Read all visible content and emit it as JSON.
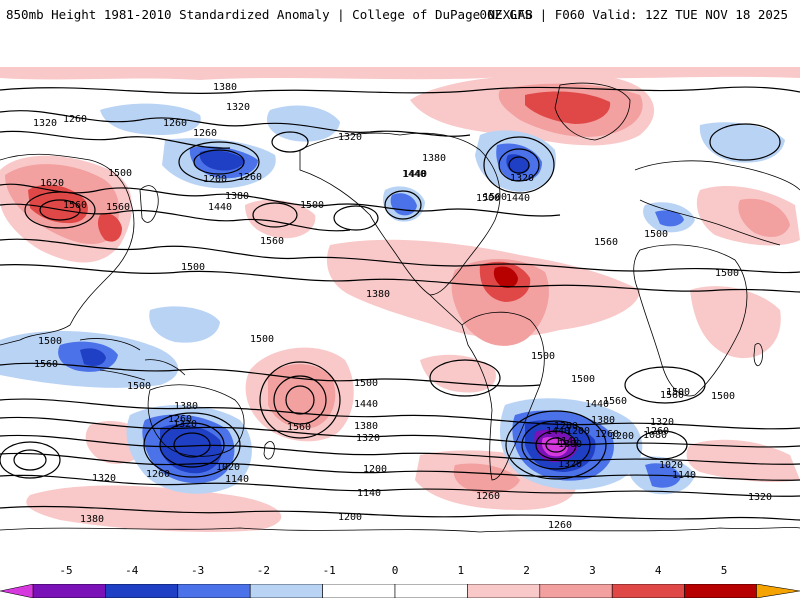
{
  "header": {
    "title": "850mb Height 1981-2010 Standardized Anomaly | College of DuPage NEXLAB",
    "run": "00Z GFS | F060 Valid: 12Z TUE NOV 18 2025"
  },
  "colors": {
    "neg5": "#d63adf",
    "neg4": "#7a12b8",
    "neg3": "#1f3fc4",
    "neg2": "#4b72e8",
    "neg1": "#b9d3f5",
    "zero": "#ffffff",
    "pos1": "#f9c9c9",
    "pos2": "#f2a0a0",
    "pos3": "#e04848",
    "pos4": "#b70000",
    "pos5": "#f5a300"
  },
  "colorbar": {
    "ticks": [
      "-5",
      "-4",
      "-3",
      "-2",
      "-1",
      "0",
      "1",
      "2",
      "3",
      "4",
      "5"
    ]
  },
  "contour_labels": [
    {
      "text": "1380"
    },
    {
      "text": "1320"
    },
    {
      "text": "1320"
    },
    {
      "text": "1260"
    },
    {
      "text": "1260"
    },
    {
      "text": "1260"
    },
    {
      "text": "1320"
    },
    {
      "text": "1620"
    },
    {
      "text": "1500"
    },
    {
      "text": "1560"
    },
    {
      "text": "1560"
    },
    {
      "text": "1200"
    },
    {
      "text": "1260"
    },
    {
      "text": "1380"
    },
    {
      "text": "1440"
    },
    {
      "text": "1380"
    },
    {
      "text": "1440"
    },
    {
      "text": "1500"
    },
    {
      "text": "1560"
    },
    {
      "text": "1320"
    },
    {
      "text": "1500"
    },
    {
      "text": "1440"
    },
    {
      "text": "1440"
    },
    {
      "text": "1500"
    },
    {
      "text": "1560"
    },
    {
      "text": "1500"
    },
    {
      "text": "1380"
    },
    {
      "text": "1500"
    },
    {
      "text": "1500"
    },
    {
      "text": "1560"
    },
    {
      "text": "1500"
    },
    {
      "text": "1500"
    },
    {
      "text": "1500"
    },
    {
      "text": "1500"
    },
    {
      "text": "1500"
    },
    {
      "text": "1440"
    },
    {
      "text": "1380"
    },
    {
      "text": "1320"
    },
    {
      "text": "1200"
    },
    {
      "text": "1020"
    },
    {
      "text": "1140"
    },
    {
      "text": "1260"
    },
    {
      "text": "1320"
    },
    {
      "text": "1380"
    },
    {
      "text": "1320"
    },
    {
      "text": "1260"
    },
    {
      "text": "1500"
    },
    {
      "text": "1440"
    },
    {
      "text": "1380"
    },
    {
      "text": "1320"
    },
    {
      "text": "1560"
    },
    {
      "text": "1200"
    },
    {
      "text": "1260"
    },
    {
      "text": "1140"
    },
    {
      "text": "1200"
    },
    {
      "text": "1260"
    },
    {
      "text": "1260"
    },
    {
      "text": "1500"
    },
    {
      "text": "1560"
    },
    {
      "text": "1440"
    },
    {
      "text": "1380"
    },
    {
      "text": "1260"
    },
    {
      "text": "1140"
    },
    {
      "text": "1200"
    },
    {
      "text": "1320"
    },
    {
      "text": "1080"
    },
    {
      "text": "1020"
    },
    {
      "text": "1140"
    },
    {
      "text": "1500"
    },
    {
      "text": "1560"
    },
    {
      "text": "1320"
    },
    {
      "text": "1260"
    },
    {
      "text": "1380"
    }
  ]
}
